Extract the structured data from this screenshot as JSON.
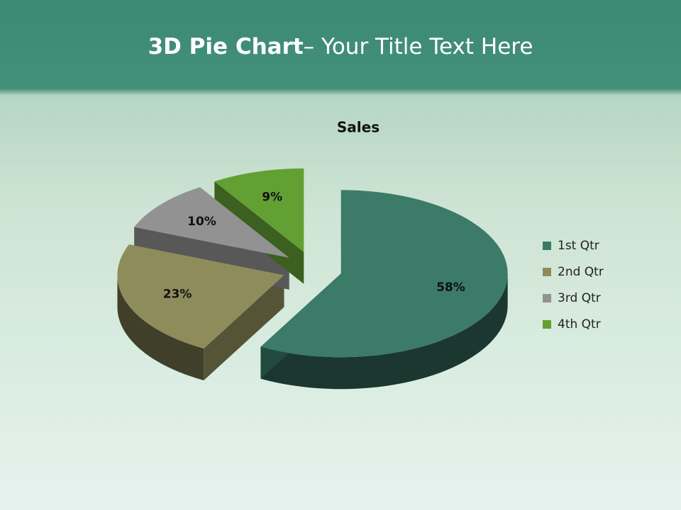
{
  "slide_title": {
    "bold": "3D Pie Chart",
    "rest": "– Your Title Text Here"
  },
  "chart_data": {
    "type": "pie",
    "title": "Sales",
    "categories": [
      "1st Qtr",
      "2nd Qtr",
      "3rd Qtr",
      "4th Qtr"
    ],
    "values": [
      58,
      23,
      10,
      9
    ],
    "value_labels": [
      "58%",
      "23%",
      "10%",
      "9%"
    ],
    "colors": [
      "#3b7b68",
      "#8f8c5c",
      "#929292",
      "#62a033"
    ],
    "legend": "right"
  }
}
